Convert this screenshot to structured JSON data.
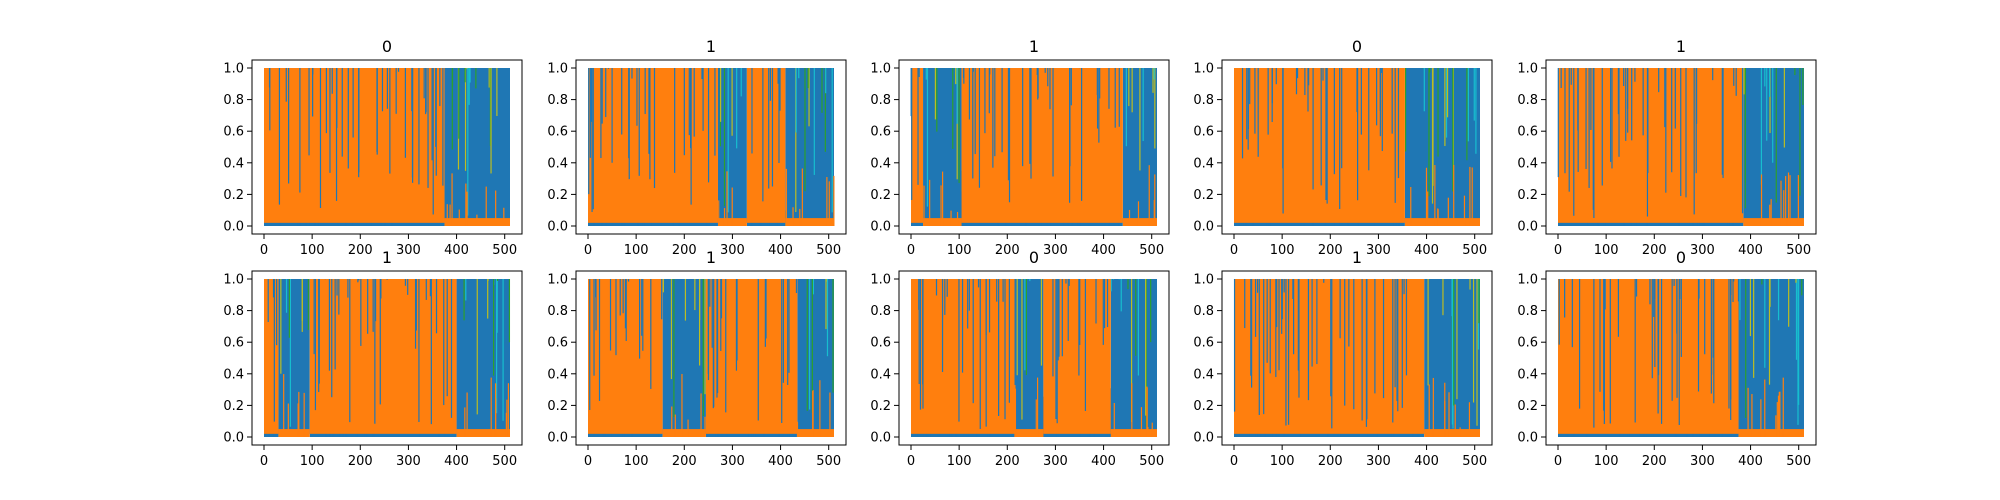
{
  "chart_data": [
    {
      "type": "line",
      "title": "0",
      "xlim": [
        0,
        511
      ],
      "ylim": [
        0.0,
        1.0
      ],
      "xticks": [
        "0",
        "100",
        "200",
        "300",
        "400",
        "500"
      ],
      "yticks": [
        "0.0",
        "0.2",
        "0.4",
        "0.6",
        "0.8",
        "1.0"
      ],
      "series": [
        {
          "color": "#ff7f0e",
          "segments": [
            {
              "x": [
                0,
                375
              ],
              "level": "high"
            },
            {
              "x": [
                375,
                511
              ],
              "level": "low"
            }
          ]
        },
        {
          "color": "#1f77b4",
          "segments": [
            {
              "x": [
                0,
                375
              ],
              "level": "low"
            },
            {
              "x": [
                375,
                511
              ],
              "level": "high"
            }
          ]
        }
      ]
    },
    {
      "type": "line",
      "title": "1",
      "xlim": [
        0,
        511
      ],
      "ylim": [
        0.0,
        1.0
      ],
      "xticks": [
        "0",
        "100",
        "200",
        "300",
        "400",
        "500"
      ],
      "yticks": [
        "0.0",
        "0.2",
        "0.4",
        "0.6",
        "0.8",
        "1.0"
      ],
      "series": [
        {
          "color": "#ff7f0e",
          "segments": [
            {
              "x": [
                0,
                270
              ],
              "level": "high"
            },
            {
              "x": [
                270,
                330
              ],
              "level": "low"
            },
            {
              "x": [
                330,
                410
              ],
              "level": "high"
            },
            {
              "x": [
                410,
                511
              ],
              "level": "low"
            }
          ]
        },
        {
          "color": "#1f77b4",
          "segments": [
            {
              "x": [
                0,
                270
              ],
              "level": "low"
            },
            {
              "x": [
                270,
                330
              ],
              "level": "high"
            },
            {
              "x": [
                330,
                410
              ],
              "level": "low"
            },
            {
              "x": [
                410,
                511
              ],
              "level": "high"
            }
          ]
        }
      ]
    },
    {
      "type": "line",
      "title": "1",
      "xlim": [
        0,
        511
      ],
      "ylim": [
        0.0,
        1.0
      ],
      "xticks": [
        "0",
        "100",
        "200",
        "300",
        "400",
        "500"
      ],
      "yticks": [
        "0.0",
        "0.2",
        "0.4",
        "0.6",
        "0.8",
        "1.0"
      ],
      "series": [
        {
          "color": "#ff7f0e",
          "segments": [
            {
              "x": [
                0,
                25
              ],
              "level": "high"
            },
            {
              "x": [
                25,
                105
              ],
              "level": "low"
            },
            {
              "x": [
                105,
                440
              ],
              "level": "high"
            },
            {
              "x": [
                440,
                511
              ],
              "level": "low"
            }
          ]
        },
        {
          "color": "#1f77b4",
          "segments": [
            {
              "x": [
                0,
                25
              ],
              "level": "low"
            },
            {
              "x": [
                25,
                105
              ],
              "level": "high"
            },
            {
              "x": [
                105,
                440
              ],
              "level": "low"
            },
            {
              "x": [
                440,
                511
              ],
              "level": "high"
            }
          ]
        }
      ]
    },
    {
      "type": "line",
      "title": "0",
      "xlim": [
        0,
        511
      ],
      "ylim": [
        0.0,
        1.0
      ],
      "xticks": [
        "0",
        "100",
        "200",
        "300",
        "400",
        "500"
      ],
      "yticks": [
        "0.0",
        "0.2",
        "0.4",
        "0.6",
        "0.8",
        "1.0"
      ],
      "series": [
        {
          "color": "#ff7f0e",
          "segments": [
            {
              "x": [
                0,
                355
              ],
              "level": "high"
            },
            {
              "x": [
                355,
                511
              ],
              "level": "low"
            }
          ]
        },
        {
          "color": "#1f77b4",
          "segments": [
            {
              "x": [
                0,
                355
              ],
              "level": "low"
            },
            {
              "x": [
                355,
                511
              ],
              "level": "high"
            }
          ]
        }
      ]
    },
    {
      "type": "line",
      "title": "1",
      "xlim": [
        0,
        511
      ],
      "ylim": [
        0.0,
        1.0
      ],
      "xticks": [
        "0",
        "100",
        "200",
        "300",
        "400",
        "500"
      ],
      "yticks": [
        "0.0",
        "0.2",
        "0.4",
        "0.6",
        "0.8",
        "1.0"
      ],
      "series": [
        {
          "color": "#ff7f0e",
          "segments": [
            {
              "x": [
                0,
                385
              ],
              "level": "high"
            },
            {
              "x": [
                385,
                511
              ],
              "level": "low"
            }
          ]
        },
        {
          "color": "#1f77b4",
          "segments": [
            {
              "x": [
                0,
                385
              ],
              "level": "low"
            },
            {
              "x": [
                385,
                511
              ],
              "level": "high"
            }
          ]
        }
      ]
    },
    {
      "type": "line",
      "title": "1",
      "xlim": [
        0,
        511
      ],
      "ylim": [
        0.0,
        1.0
      ],
      "xticks": [
        "0",
        "100",
        "200",
        "300",
        "400",
        "500"
      ],
      "yticks": [
        "0.0",
        "0.2",
        "0.4",
        "0.6",
        "0.8",
        "1.0"
      ],
      "series": [
        {
          "color": "#ff7f0e",
          "segments": [
            {
              "x": [
                0,
                30
              ],
              "level": "high"
            },
            {
              "x": [
                30,
                95
              ],
              "level": "low"
            },
            {
              "x": [
                95,
                400
              ],
              "level": "high"
            },
            {
              "x": [
                400,
                511
              ],
              "level": "low"
            }
          ]
        },
        {
          "color": "#1f77b4",
          "segments": [
            {
              "x": [
                0,
                30
              ],
              "level": "low"
            },
            {
              "x": [
                30,
                95
              ],
              "level": "high"
            },
            {
              "x": [
                95,
                400
              ],
              "level": "low"
            },
            {
              "x": [
                400,
                511
              ],
              "level": "high"
            }
          ]
        }
      ]
    },
    {
      "type": "line",
      "title": "1",
      "xlim": [
        0,
        511
      ],
      "ylim": [
        0.0,
        1.0
      ],
      "xticks": [
        "0",
        "100",
        "200",
        "300",
        "400",
        "500"
      ],
      "yticks": [
        "0.0",
        "0.2",
        "0.4",
        "0.6",
        "0.8",
        "1.0"
      ],
      "series": [
        {
          "color": "#ff7f0e",
          "segments": [
            {
              "x": [
                0,
                155
              ],
              "level": "high"
            },
            {
              "x": [
                155,
                245
              ],
              "level": "low"
            },
            {
              "x": [
                245,
                435
              ],
              "level": "high"
            },
            {
              "x": [
                435,
                511
              ],
              "level": "low"
            }
          ]
        },
        {
          "color": "#1f77b4",
          "segments": [
            {
              "x": [
                0,
                155
              ],
              "level": "low"
            },
            {
              "x": [
                155,
                245
              ],
              "level": "high"
            },
            {
              "x": [
                245,
                435
              ],
              "level": "low"
            },
            {
              "x": [
                435,
                511
              ],
              "level": "high"
            }
          ]
        }
      ]
    },
    {
      "type": "line",
      "title": "0",
      "xlim": [
        0,
        511
      ],
      "ylim": [
        0.0,
        1.0
      ],
      "xticks": [
        "0",
        "100",
        "200",
        "300",
        "400",
        "500"
      ],
      "yticks": [
        "0.0",
        "0.2",
        "0.4",
        "0.6",
        "0.8",
        "1.0"
      ],
      "series": [
        {
          "color": "#ff7f0e",
          "segments": [
            {
              "x": [
                0,
                215
              ],
              "level": "high"
            },
            {
              "x": [
                215,
                275
              ],
              "level": "low"
            },
            {
              "x": [
                275,
                415
              ],
              "level": "high"
            },
            {
              "x": [
                415,
                511
              ],
              "level": "low"
            }
          ]
        },
        {
          "color": "#1f77b4",
          "segments": [
            {
              "x": [
                0,
                215
              ],
              "level": "low"
            },
            {
              "x": [
                215,
                275
              ],
              "level": "high"
            },
            {
              "x": [
                275,
                415
              ],
              "level": "low"
            },
            {
              "x": [
                415,
                511
              ],
              "level": "high"
            }
          ]
        }
      ]
    },
    {
      "type": "line",
      "title": "1",
      "xlim": [
        0,
        511
      ],
      "ylim": [
        0.0,
        1.0
      ],
      "xticks": [
        "0",
        "100",
        "200",
        "300",
        "400",
        "500"
      ],
      "yticks": [
        "0.0",
        "0.2",
        "0.4",
        "0.6",
        "0.8",
        "1.0"
      ],
      "series": [
        {
          "color": "#ff7f0e",
          "segments": [
            {
              "x": [
                0,
                395
              ],
              "level": "high"
            },
            {
              "x": [
                395,
                511
              ],
              "level": "low"
            }
          ]
        },
        {
          "color": "#1f77b4",
          "segments": [
            {
              "x": [
                0,
                395
              ],
              "level": "low"
            },
            {
              "x": [
                395,
                511
              ],
              "level": "high"
            }
          ]
        }
      ]
    },
    {
      "type": "line",
      "title": "0",
      "xlim": [
        0,
        511
      ],
      "ylim": [
        0.0,
        1.0
      ],
      "xticks": [
        "0",
        "100",
        "200",
        "300",
        "400",
        "500"
      ],
      "yticks": [
        "0.0",
        "0.2",
        "0.4",
        "0.6",
        "0.8",
        "1.0"
      ],
      "series": [
        {
          "color": "#ff7f0e",
          "segments": [
            {
              "x": [
                0,
                375
              ],
              "level": "high"
            },
            {
              "x": [
                375,
                511
              ],
              "level": "low"
            }
          ]
        },
        {
          "color": "#1f77b4",
          "segments": [
            {
              "x": [
                0,
                375
              ],
              "level": "low"
            },
            {
              "x": [
                375,
                511
              ],
              "level": "high"
            }
          ]
        }
      ]
    }
  ],
  "style": {
    "background": "#ffffff",
    "axis_color": "#000000",
    "noise_colors": [
      "#17becf",
      "#bcbd22",
      "#2ca02c",
      "#e377c2",
      "#9467bd",
      "#d62728",
      "#8c564b",
      "#7f7f7f"
    ]
  }
}
